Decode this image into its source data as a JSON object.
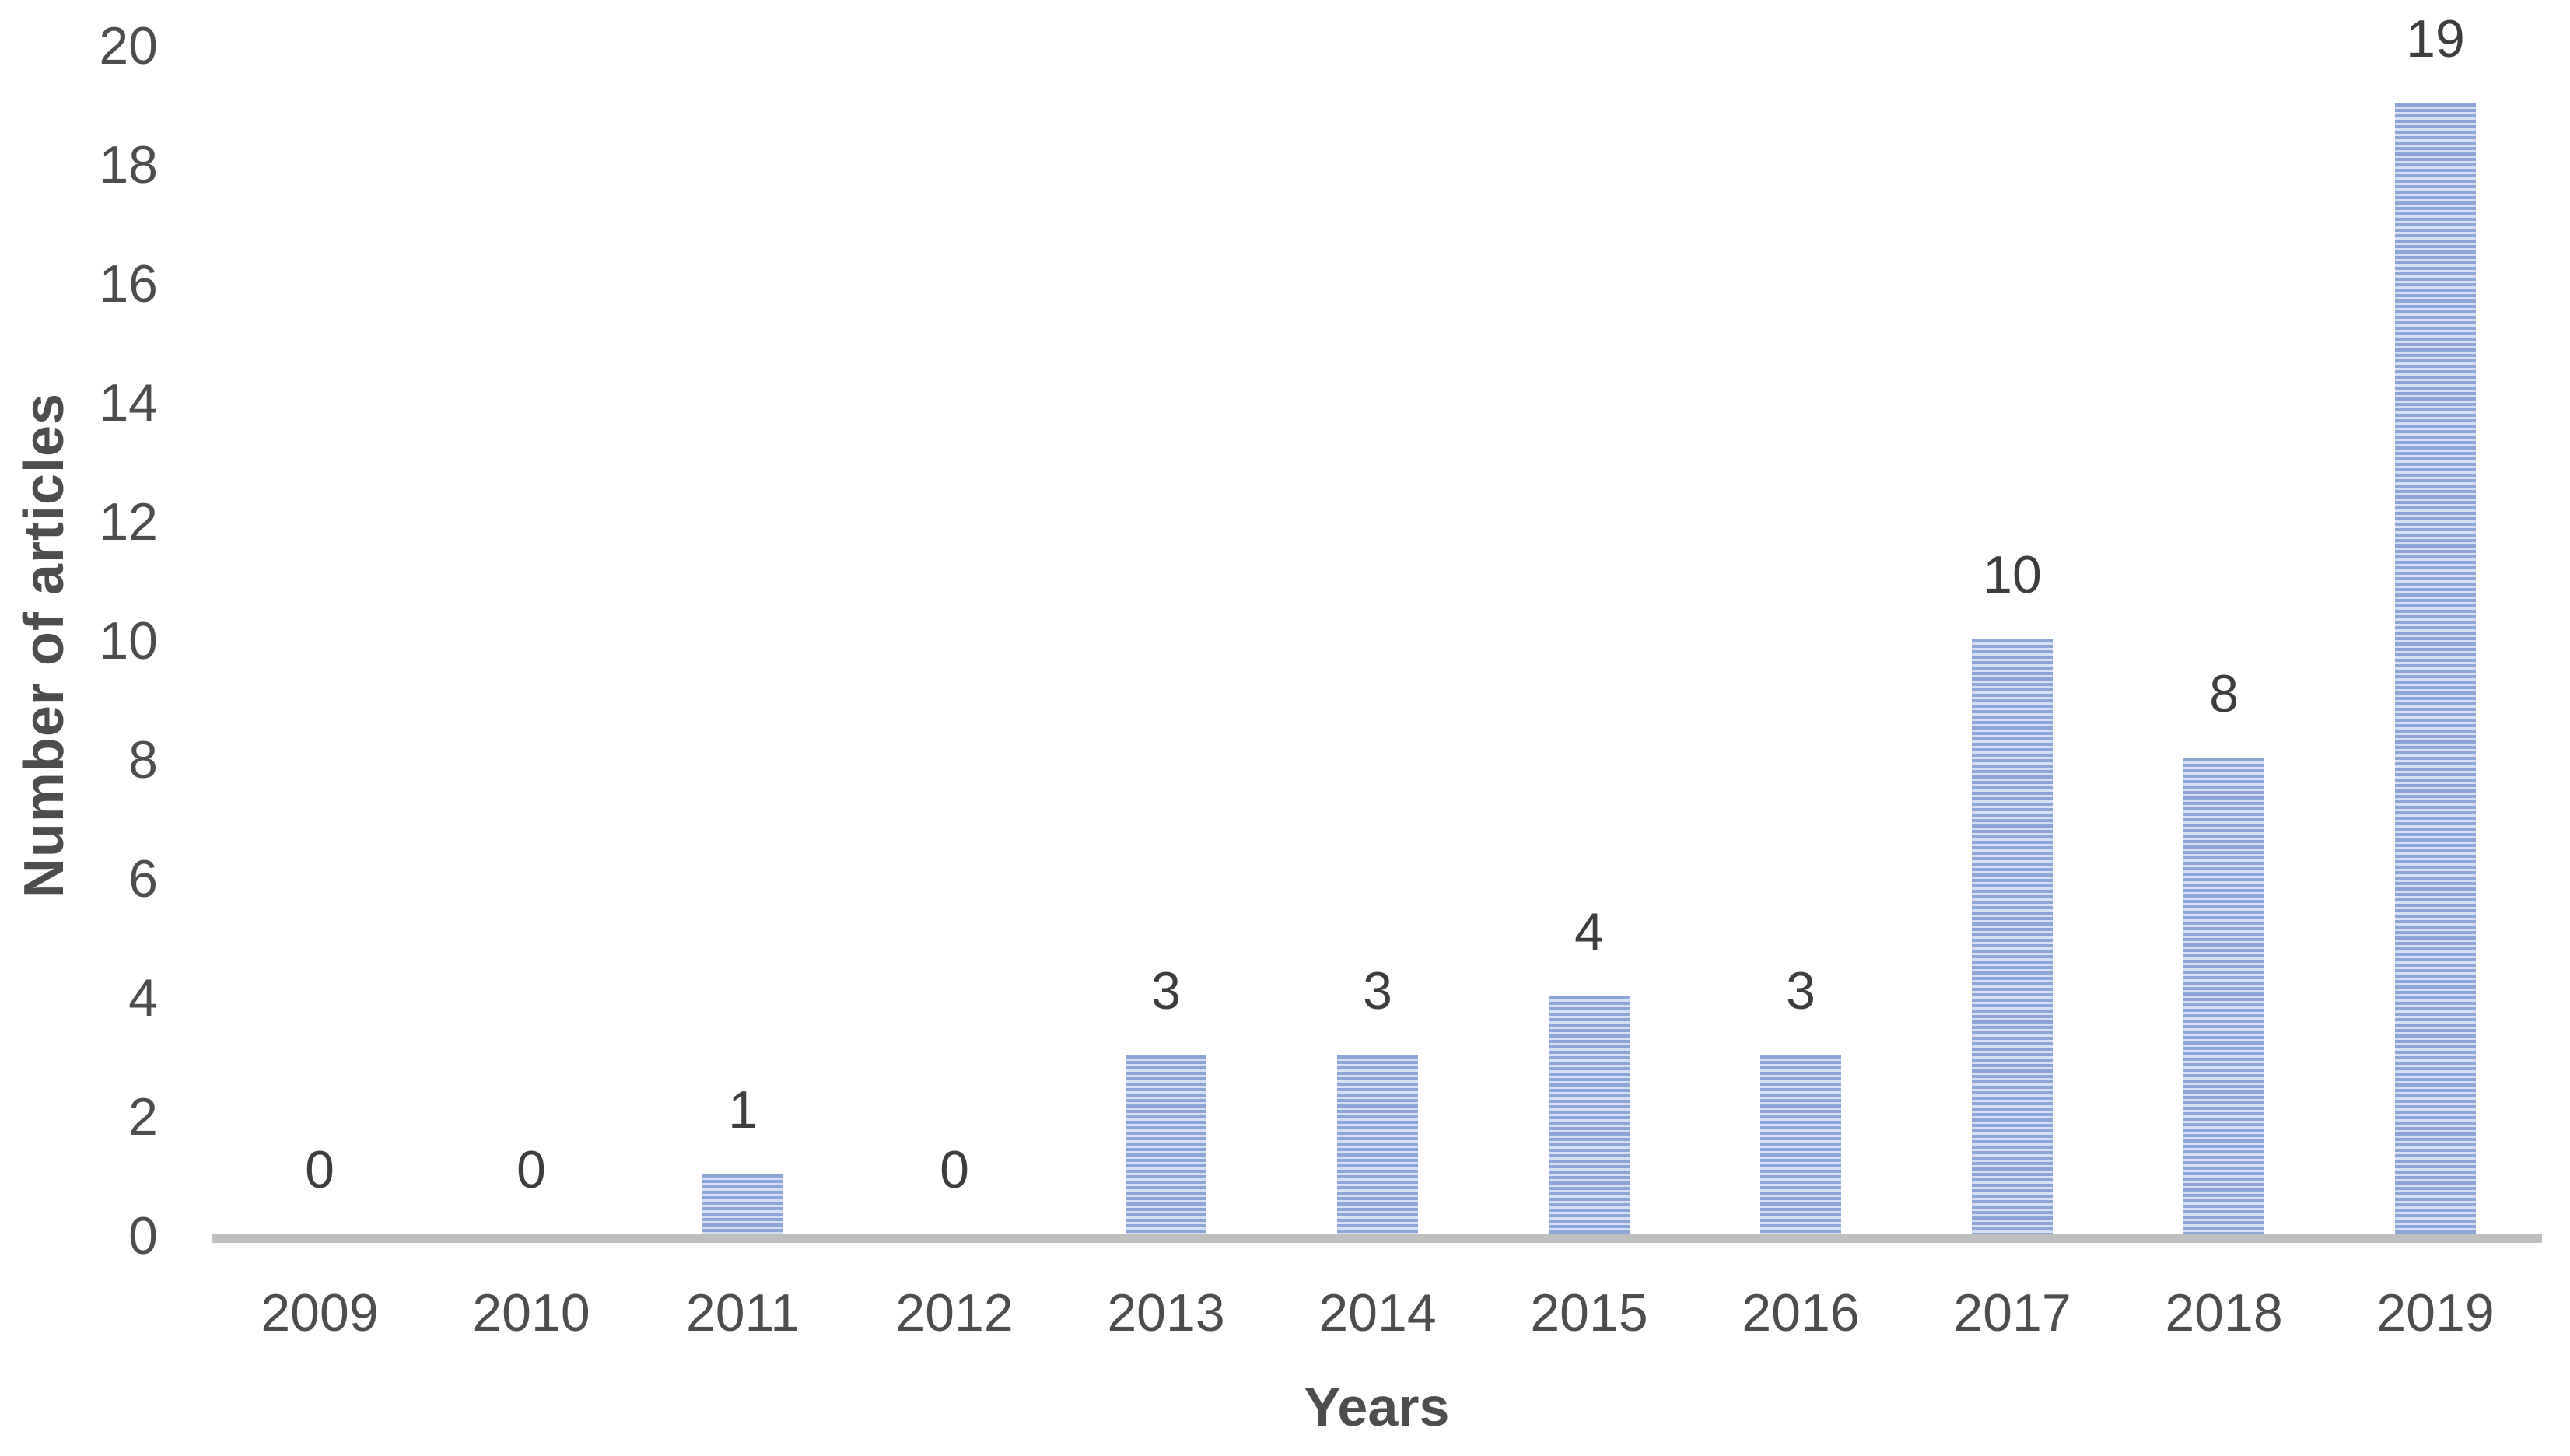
{
  "chart_data": {
    "type": "bar",
    "title": "",
    "categories": [
      "2009",
      "2010",
      "2011",
      "2012",
      "2013",
      "2014",
      "2015",
      "2016",
      "2017",
      "2018",
      "2019"
    ],
    "values": [
      0,
      0,
      1,
      0,
      3,
      3,
      4,
      3,
      10,
      8,
      19
    ],
    "data_labels": [
      "0",
      "0",
      "1",
      "0",
      "3",
      "3",
      "4",
      "3",
      "10",
      "8",
      "19"
    ],
    "xlabel": "Years",
    "ylabel": "Number of articles",
    "ylim": [
      0,
      20
    ],
    "yticks": [
      0,
      2,
      4,
      6,
      8,
      10,
      12,
      14,
      16,
      18,
      20
    ],
    "grid": false,
    "legend": false,
    "colors": {
      "bar_stripe_dark": "#8da6d8",
      "bar_stripe_light": "#d6dff3",
      "axis_line": "#bfbfbf",
      "tick_text": "#4d4d4d",
      "data_label_text": "#3d3d3d",
      "title_text": "#4d4d4d"
    }
  }
}
